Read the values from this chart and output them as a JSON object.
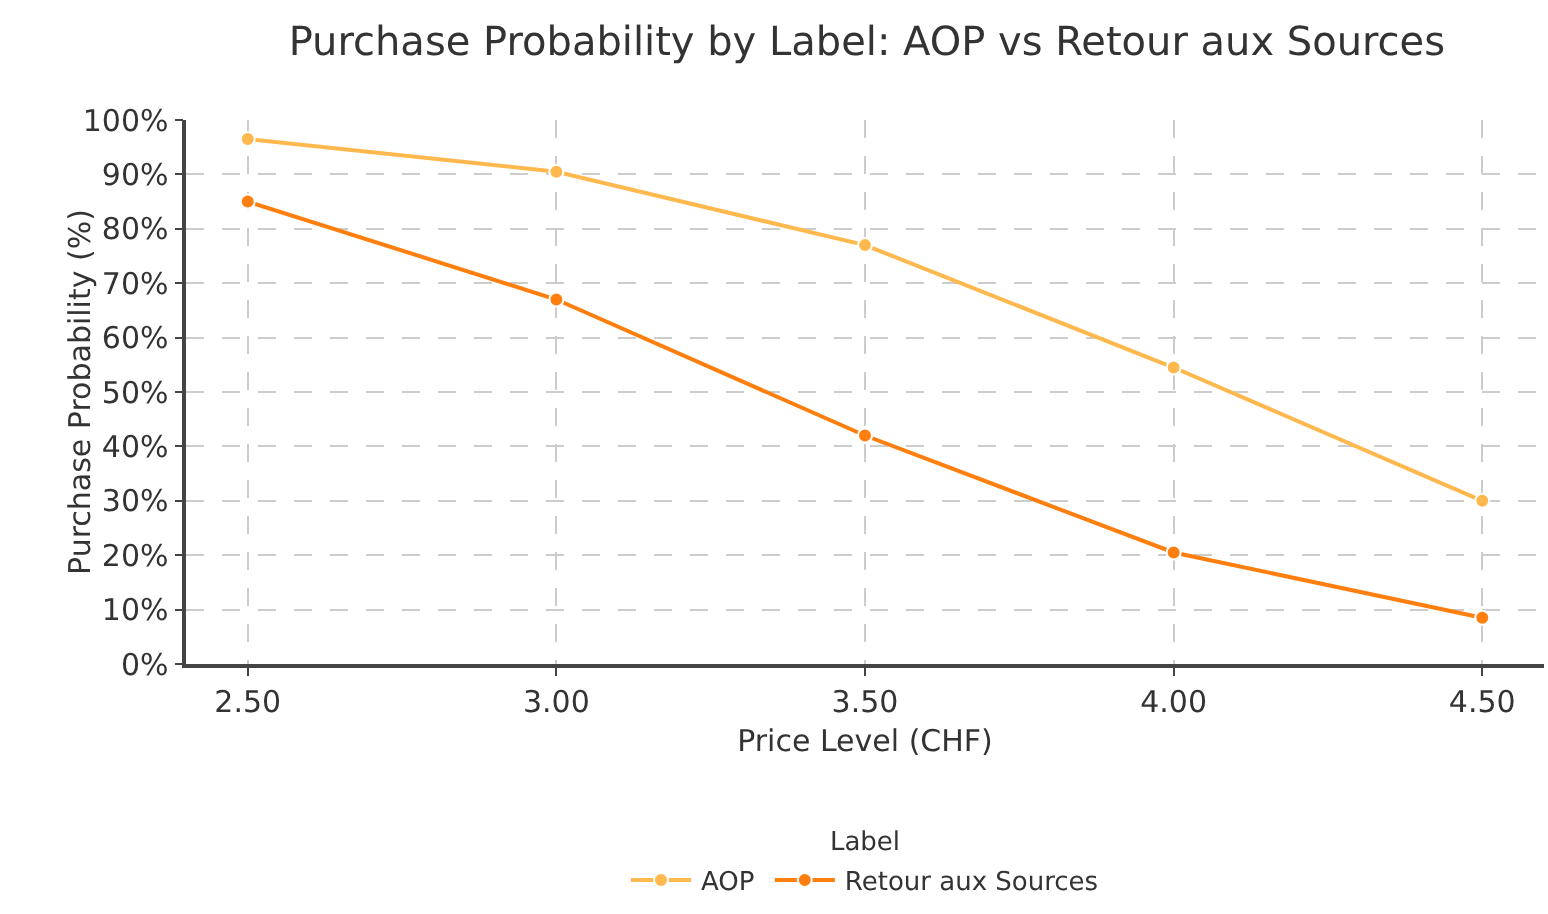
{
  "chart_data": {
    "type": "line",
    "title": "Purchase Probability by Label: AOP vs Retour aux Sources",
    "xlabel": "Price Level (CHF)",
    "ylabel": "Purchase Probability (%)",
    "legend_title": "Label",
    "x": [
      2.5,
      3.0,
      3.5,
      4.0,
      4.5
    ],
    "series": [
      {
        "name": "AOP",
        "color": "#ffb84d",
        "values": [
          96.5,
          90.5,
          77,
          54.5,
          30
        ]
      },
      {
        "name": "Retour aux Sources",
        "color": "#ff7f0e",
        "values": [
          85,
          67,
          42,
          20.5,
          8.5
        ]
      }
    ],
    "xlim": [
      2.4,
      4.6
    ],
    "xticks": [
      {
        "value": 2.5,
        "label": "2.50"
      },
      {
        "value": 3.0,
        "label": "3.00"
      },
      {
        "value": 3.5,
        "label": "3.50"
      },
      {
        "value": 4.0,
        "label": "4.00"
      },
      {
        "value": 4.5,
        "label": "4.50"
      }
    ],
    "ylim": [
      0,
      100
    ],
    "yticks": [
      {
        "value": 0,
        "label": "0%"
      },
      {
        "value": 10,
        "label": "10%"
      },
      {
        "value": 20,
        "label": "20%"
      },
      {
        "value": 30,
        "label": "30%"
      },
      {
        "value": 40,
        "label": "40%"
      },
      {
        "value": 50,
        "label": "50%"
      },
      {
        "value": 60,
        "label": "60%"
      },
      {
        "value": 70,
        "label": "70%"
      },
      {
        "value": 80,
        "label": "80%"
      },
      {
        "value": 90,
        "label": "90%"
      },
      {
        "value": 100,
        "label": "100%"
      }
    ],
    "grid": true,
    "legend": "bottom",
    "marker": "circle",
    "line_style": "solid"
  }
}
